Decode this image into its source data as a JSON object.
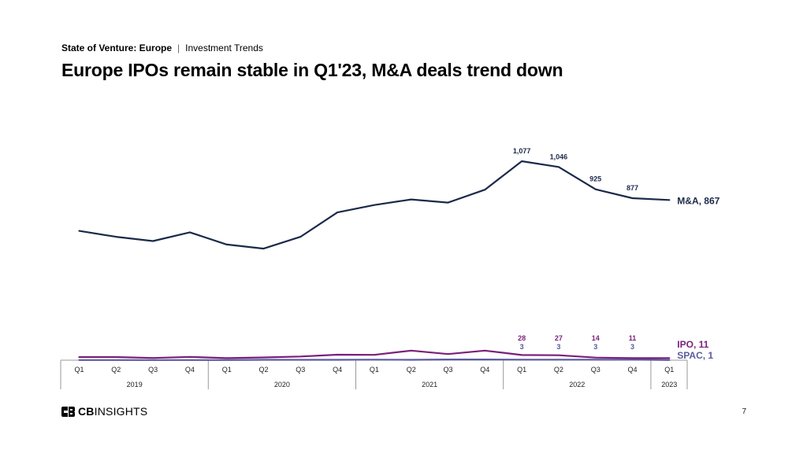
{
  "header": {
    "section": "State of Venture: Europe",
    "separator": "|",
    "topic": "Investment Trends",
    "title": "Europe IPOs remain stable in Q1'23, M&A deals trend down"
  },
  "footer": {
    "logo_bold": "CB",
    "logo_rest": "INSIGHTS",
    "page_number": "7"
  },
  "colors": {
    "ma": "#1b2a4a",
    "ipo": "#7b1f7a",
    "spac": "#5a5aa0",
    "axis": "#999999"
  },
  "chart_data": {
    "type": "line",
    "title": "Europe IPOs remain stable in Q1'23, M&A deals trend down",
    "quarters": [
      "Q1",
      "Q2",
      "Q3",
      "Q4",
      "Q1",
      "Q2",
      "Q3",
      "Q4",
      "Q1",
      "Q2",
      "Q3",
      "Q4",
      "Q1",
      "Q2",
      "Q3",
      "Q4",
      "Q1"
    ],
    "years": [
      {
        "label": "2019",
        "count": 4
      },
      {
        "label": "2020",
        "count": 4
      },
      {
        "label": "2021",
        "count": 4
      },
      {
        "label": "2022",
        "count": 4
      },
      {
        "label": "2023",
        "count": 1
      }
    ],
    "ylim": [
      0,
      1100
    ],
    "series": [
      {
        "name": "M&A",
        "end_label": "M&A, 867",
        "values": [
          700,
          668,
          645,
          692,
          626,
          604,
          668,
          800,
          840,
          870,
          853,
          923,
          1077,
          1046,
          925,
          877,
          867
        ],
        "labels": [
          null,
          null,
          null,
          null,
          null,
          null,
          null,
          null,
          null,
          null,
          null,
          null,
          "1,077",
          "1,046",
          "925",
          "877",
          null
        ]
      },
      {
        "name": "IPO",
        "end_label": "IPO, 11",
        "values": [
          17,
          17,
          12,
          18,
          11,
          15,
          20,
          30,
          29,
          52,
          33,
          52,
          28,
          27,
          14,
          11,
          11
        ],
        "labels": [
          null,
          null,
          null,
          null,
          null,
          null,
          null,
          null,
          null,
          null,
          null,
          null,
          "28",
          "27",
          "14",
          "11",
          null
        ]
      },
      {
        "name": "SPAC",
        "end_label": "SPAC, 1",
        "values": [
          1,
          1,
          1,
          1,
          1,
          2,
          2,
          2,
          3,
          2,
          4,
          4,
          3,
          3,
          3,
          3,
          1
        ],
        "labels": [
          null,
          null,
          null,
          null,
          null,
          null,
          null,
          null,
          null,
          null,
          null,
          null,
          "3",
          "3",
          "3",
          "3",
          null
        ]
      }
    ]
  }
}
